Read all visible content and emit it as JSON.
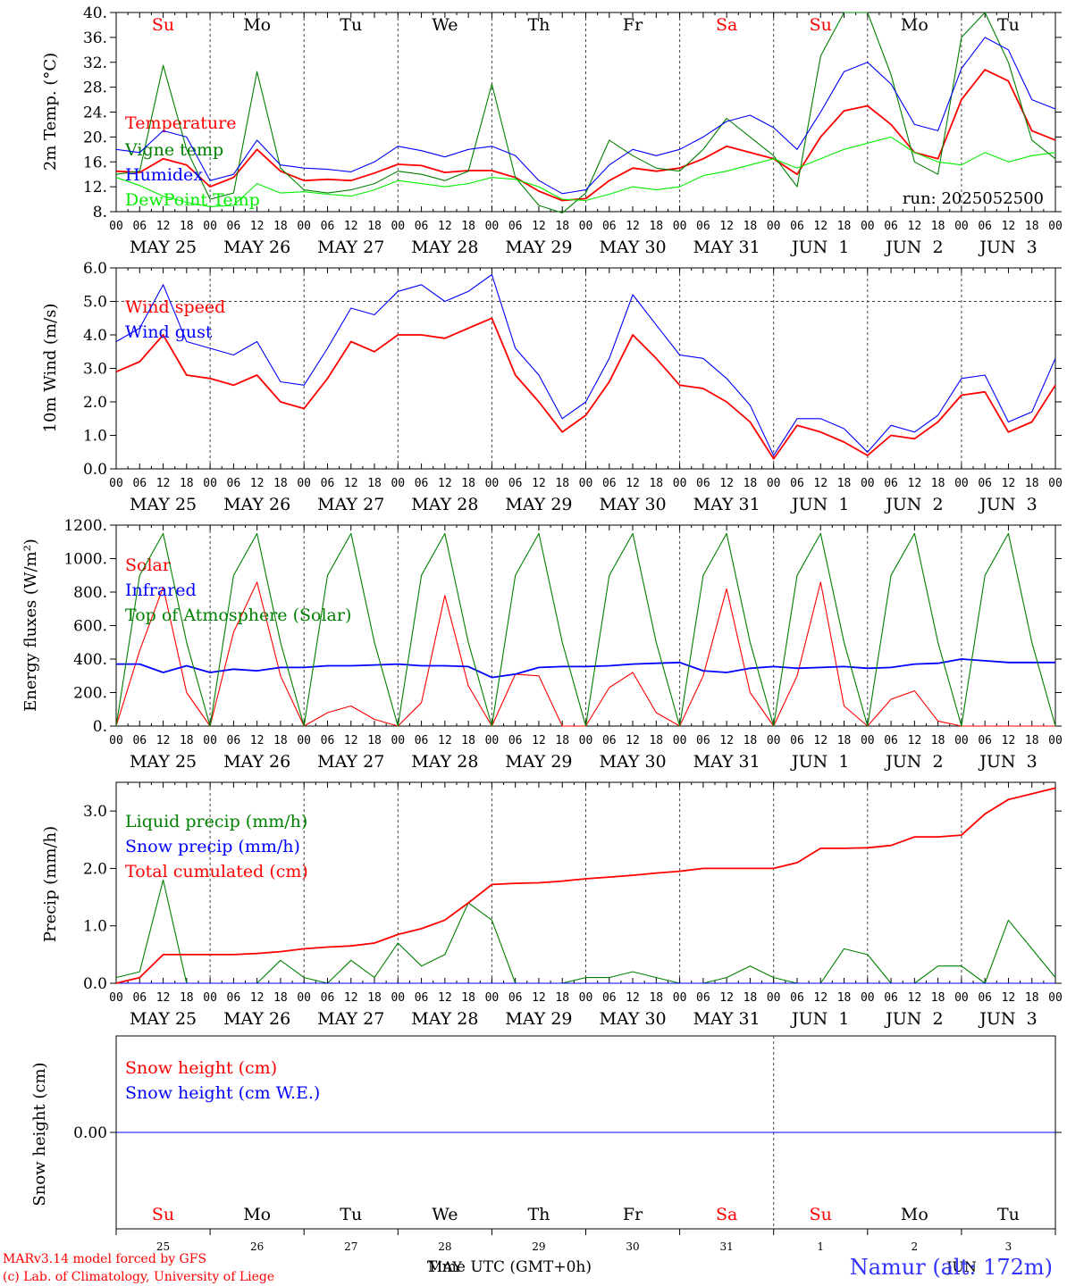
{
  "weekdays": [
    {
      "label": "Su",
      "weekend": true
    },
    {
      "label": "Mo",
      "weekend": false
    },
    {
      "label": "Tu",
      "weekend": false
    },
    {
      "label": "We",
      "weekend": false
    },
    {
      "label": "Th",
      "weekend": false
    },
    {
      "label": "Fr",
      "weekend": false
    },
    {
      "label": "Sa",
      "weekend": true
    },
    {
      "label": "Su",
      "weekend": true
    },
    {
      "label": "Mo",
      "weekend": false
    },
    {
      "label": "Tu",
      "weekend": false
    }
  ],
  "date_labels": [
    "MAY 25",
    "MAY 26",
    "MAY 27",
    "MAY 28",
    "MAY 29",
    "MAY 30",
    "MAY 31",
    "JUN  1",
    "JUN  2",
    "JUN  3"
  ],
  "hour_labels": [
    "00",
    "06",
    "12",
    "18"
  ],
  "hour_end_label": "00",
  "day_numbers": [
    "25",
    "26",
    "27",
    "28",
    "29",
    "30",
    "31",
    "1",
    "2",
    "3"
  ],
  "month_labels": {
    "first": "MAY",
    "second": "JUN"
  },
  "run_label": "run: 2025052500",
  "credit_model": "MARv3.14 model forced by GFS",
  "credit_lab": "(c) Lab. of Climatology, University of Liege",
  "time_axis_label": "Time UTC (GMT+0h)",
  "station_label": "Namur (alt: 172m)",
  "colors": {
    "red": "#ff0000",
    "green": "#008000",
    "blue": "#0000ff",
    "lightgreen": "#00ee00",
    "axis": "#000000",
    "gray": "#555555"
  },
  "chart_data": [
    {
      "type": "line",
      "ylabel": "2m Temp. (°C)",
      "ylim": [
        8,
        40
      ],
      "yticks": [
        "8.",
        "12.",
        "16.",
        "20.",
        "24.",
        "28.",
        "32.",
        "36.",
        "40."
      ],
      "ytick_values": [
        8,
        12,
        16,
        20,
        24,
        28,
        32,
        36,
        40
      ],
      "x": [
        0,
        6,
        12,
        18,
        24,
        30,
        36,
        42,
        48,
        54,
        60,
        66,
        72,
        78,
        84,
        90,
        96,
        102,
        108,
        114,
        120,
        126,
        132,
        138,
        144,
        150,
        156,
        162,
        168,
        174,
        180,
        186,
        192,
        198,
        204,
        210,
        216,
        222,
        228,
        234,
        240
      ],
      "series": [
        {
          "name": "Temperature",
          "color": "#ff0000",
          "values": [
            14.5,
            14.3,
            16.5,
            15.5,
            12.0,
            13.5,
            18.0,
            14.5,
            13.0,
            13.2,
            13.0,
            14.2,
            15.6,
            15.4,
            14.3,
            14.6,
            14.6,
            13.5,
            11.3,
            9.8,
            10.1,
            13.0,
            15.0,
            14.5,
            15.0,
            16.5,
            18.5,
            17.5,
            16.5,
            14.0,
            20.0,
            24.2,
            25.0,
            22.0,
            17.5,
            16.5,
            26.0,
            30.8,
            29.0,
            21.0,
            19.5
          ]
        },
        {
          "name": "Vigne temp",
          "color": "#008000",
          "values": [
            14.0,
            14.5,
            31.5,
            18.0,
            10.0,
            11.0,
            30.5,
            15.0,
            11.5,
            11.0,
            11.5,
            12.5,
            14.5,
            14.0,
            13.0,
            14.5,
            28.5,
            13.5,
            9.0,
            7.8,
            11.0,
            19.5,
            17.0,
            15.0,
            14.5,
            18.0,
            23.0,
            20.0,
            17.0,
            12.0,
            33.0,
            40.0,
            40.0,
            30.0,
            16.0,
            14.0,
            36.0,
            40.0,
            32.0,
            19.5,
            16.5
          ]
        },
        {
          "name": "Humidex",
          "color": "#0000ff",
          "values": [
            18.0,
            17.5,
            21.0,
            20.0,
            13.0,
            14.0,
            19.5,
            15.5,
            15.0,
            14.8,
            14.4,
            16.0,
            18.5,
            17.8,
            16.8,
            18.0,
            18.5,
            17.0,
            13.0,
            10.9,
            11.5,
            15.5,
            18.0,
            17.0,
            18.0,
            20.0,
            22.5,
            23.5,
            21.5,
            18.0,
            24.0,
            30.5,
            32.0,
            28.5,
            22.0,
            21.0,
            31.0,
            36.0,
            34.0,
            26.0,
            24.5
          ]
        },
        {
          "name": "DewPoint Temp",
          "color": "#00ee00",
          "values": [
            13.5,
            12.2,
            10.5,
            9.5,
            8.8,
            9.0,
            12.5,
            11.0,
            11.2,
            10.8,
            10.5,
            11.5,
            13.0,
            12.5,
            12.0,
            12.5,
            13.5,
            13.2,
            12.0,
            10.0,
            9.8,
            10.8,
            12.0,
            11.5,
            12.0,
            13.8,
            14.5,
            15.5,
            16.5,
            15.0,
            16.5,
            18.0,
            19.0,
            20.0,
            17.5,
            16.0,
            15.5,
            17.5,
            16.0,
            17.0,
            17.5
          ]
        }
      ]
    },
    {
      "type": "line",
      "ylabel": "10m Wind (m/s)",
      "ylim": [
        0,
        6
      ],
      "yticks": [
        "0.0",
        "1.0",
        "2.0",
        "3.0",
        "4.0",
        "5.0",
        "6.0"
      ],
      "ytick_values": [
        0,
        1,
        2,
        3,
        4,
        5,
        6
      ],
      "x": [
        0,
        6,
        12,
        18,
        24,
        30,
        36,
        42,
        48,
        54,
        60,
        66,
        72,
        78,
        84,
        90,
        96,
        102,
        108,
        114,
        120,
        126,
        132,
        138,
        144,
        150,
        156,
        162,
        168,
        174,
        180,
        186,
        192,
        198,
        204,
        210,
        216,
        222,
        228,
        234,
        240
      ],
      "series": [
        {
          "name": "Wind speed",
          "color": "#ff0000",
          "values": [
            2.9,
            3.2,
            4.0,
            2.8,
            2.7,
            2.5,
            2.8,
            2.0,
            1.8,
            2.7,
            3.8,
            3.5,
            4.0,
            4.0,
            3.9,
            4.2,
            4.5,
            2.8,
            2.0,
            1.1,
            1.6,
            2.6,
            4.0,
            3.3,
            2.5,
            2.4,
            2.0,
            1.4,
            0.3,
            1.3,
            1.1,
            0.8,
            0.4,
            1.0,
            0.9,
            1.4,
            2.2,
            2.3,
            1.1,
            1.4,
            2.5
          ]
        },
        {
          "name": "Wind gust",
          "color": "#0000ff",
          "values": [
            3.8,
            4.2,
            5.5,
            3.8,
            3.6,
            3.4,
            3.8,
            2.6,
            2.5,
            3.6,
            4.8,
            4.6,
            5.3,
            5.5,
            5.0,
            5.3,
            5.8,
            3.6,
            2.8,
            1.5,
            2.0,
            3.3,
            5.2,
            4.3,
            3.4,
            3.3,
            2.7,
            1.9,
            0.4,
            1.5,
            1.5,
            1.2,
            0.5,
            1.3,
            1.1,
            1.6,
            2.7,
            2.8,
            1.4,
            1.7,
            3.3
          ]
        }
      ]
    },
    {
      "type": "line",
      "ylabel": "Energy fluxes (W/m²)",
      "ylim": [
        0,
        1200
      ],
      "yticks": [
        "0.",
        "200.",
        "400.",
        "600.",
        "800.",
        "1000.",
        "1200."
      ],
      "ytick_values": [
        0,
        200,
        400,
        600,
        800,
        1000,
        1200
      ],
      "x": [
        0,
        6,
        12,
        18,
        24,
        30,
        36,
        42,
        48,
        54,
        60,
        66,
        72,
        78,
        84,
        90,
        96,
        102,
        108,
        114,
        120,
        126,
        132,
        138,
        144,
        150,
        156,
        162,
        168,
        174,
        180,
        186,
        192,
        198,
        204,
        210,
        216,
        222,
        228,
        234,
        240
      ],
      "series": [
        {
          "name": "Solar",
          "color": "#ff0000",
          "values": [
            0,
            450,
            830,
            200,
            0,
            560,
            860,
            300,
            0,
            80,
            120,
            40,
            0,
            140,
            780,
            240,
            0,
            310,
            300,
            0,
            0,
            230,
            320,
            80,
            0,
            300,
            820,
            200,
            0,
            300,
            860,
            120,
            0,
            160,
            210,
            30,
            0,
            0,
            0,
            0,
            0
          ]
        },
        {
          "name": "Infrared",
          "color": "#0000ff",
          "values": [
            370,
            370,
            320,
            360,
            320,
            340,
            330,
            350,
            350,
            360,
            360,
            365,
            370,
            360,
            360,
            355,
            290,
            310,
            350,
            355,
            355,
            360,
            370,
            375,
            380,
            330,
            320,
            345,
            355,
            345,
            350,
            355,
            345,
            350,
            370,
            375,
            400,
            390,
            380,
            380,
            380
          ]
        },
        {
          "name": "Top of Atmosphere (Solar)",
          "color": "#008000",
          "values": [
            0,
            900,
            1150,
            500,
            0,
            900,
            1150,
            500,
            0,
            900,
            1150,
            500,
            0,
            900,
            1150,
            500,
            0,
            900,
            1150,
            500,
            0,
            900,
            1150,
            500,
            0,
            900,
            1150,
            500,
            0,
            900,
            1150,
            500,
            0,
            900,
            1150,
            500,
            0,
            900,
            1150,
            500,
            0
          ]
        }
      ]
    },
    {
      "type": "line",
      "ylabel": "Precip (mm/h)",
      "ylim": [
        0,
        3.5
      ],
      "yticks": [
        "0.0",
        "1.0",
        "2.0",
        "3.0"
      ],
      "ytick_values": [
        0,
        1,
        2,
        3
      ],
      "x": [
        0,
        6,
        12,
        18,
        24,
        30,
        36,
        42,
        48,
        54,
        60,
        66,
        72,
        78,
        84,
        90,
        96,
        102,
        108,
        114,
        120,
        126,
        132,
        138,
        144,
        150,
        156,
        162,
        168,
        174,
        180,
        186,
        192,
        198,
        204,
        210,
        216,
        222,
        228,
        234,
        240
      ],
      "series": [
        {
          "name": "Liquid precip (mm/h)",
          "color": "#008000",
          "values": [
            0.1,
            0.2,
            1.8,
            0.0,
            0.0,
            0.0,
            0.0,
            0.4,
            0.1,
            0.0,
            0.4,
            0.1,
            0.7,
            0.3,
            0.5,
            1.4,
            1.1,
            0.0,
            0.0,
            0.0,
            0.1,
            0.1,
            0.2,
            0.1,
            0.0,
            0.0,
            0.1,
            0.3,
            0.1,
            0.0,
            0.0,
            0.6,
            0.5,
            0.0,
            0.0,
            0.3,
            0.3,
            0.0,
            1.1,
            0.6,
            0.1
          ]
        },
        {
          "name": "Snow precip (mm/h)",
          "color": "#0000ff",
          "values": [
            0,
            0,
            0,
            0,
            0,
            0,
            0,
            0,
            0,
            0,
            0,
            0,
            0,
            0,
            0,
            0,
            0,
            0,
            0,
            0,
            0,
            0,
            0,
            0,
            0,
            0,
            0,
            0,
            0,
            0,
            0,
            0,
            0,
            0,
            0,
            0,
            0,
            0,
            0,
            0,
            0
          ]
        },
        {
          "name": "Total cumulated (cm)",
          "color": "#ff0000",
          "values": [
            0.0,
            0.1,
            0.5,
            0.5,
            0.5,
            0.5,
            0.52,
            0.55,
            0.6,
            0.63,
            0.65,
            0.7,
            0.85,
            0.95,
            1.1,
            1.4,
            1.72,
            1.74,
            1.75,
            1.78,
            1.82,
            1.85,
            1.88,
            1.92,
            1.95,
            2.0,
            2.0,
            2.0,
            2.0,
            2.1,
            2.35,
            2.35,
            2.36,
            2.4,
            2.55,
            2.55,
            2.58,
            2.95,
            3.2,
            3.3,
            3.4
          ]
        }
      ]
    },
    {
      "type": "line",
      "ylabel": "Snow height (cm)",
      "ylim": [
        -1,
        1
      ],
      "yticks": [
        "0.00"
      ],
      "ytick_values": [
        0
      ],
      "x": [
        0,
        240
      ],
      "series": [
        {
          "name": "Snow height (cm)",
          "color": "#ff0000",
          "values": [
            0,
            0
          ]
        },
        {
          "name": "Snow height (cm W.E.)",
          "color": "#0000ff",
          "values": [
            0,
            0
          ]
        }
      ]
    }
  ]
}
